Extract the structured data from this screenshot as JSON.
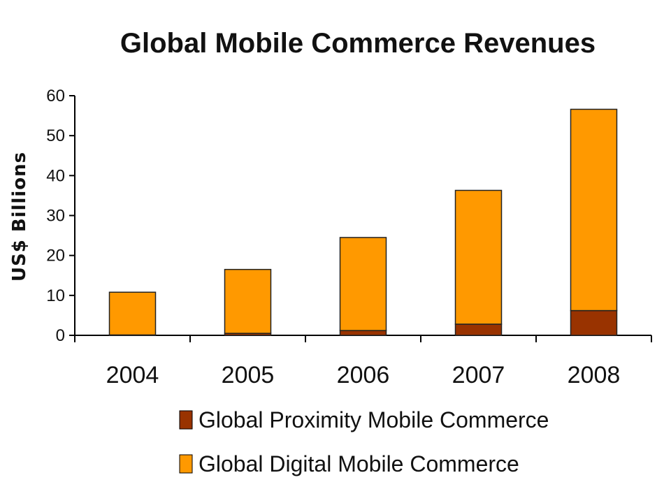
{
  "chart_data": {
    "type": "bar",
    "stacked": true,
    "title": "Global Mobile Commerce Revenues",
    "xlabel": "",
    "ylabel": "US$ Billions",
    "ylim": [
      0,
      60
    ],
    "yticks": [
      "0",
      "10",
      "20",
      "30",
      "40",
      "50",
      "60"
    ],
    "grid": false,
    "legend_position": "bottom",
    "categories": [
      "2004",
      "2005",
      "2006",
      "2007",
      "2008"
    ],
    "series": [
      {
        "name": "Global Proximity Mobile Commerce",
        "color": "#993300",
        "values": [
          0.1,
          0.5,
          1.2,
          2.8,
          6.2
        ]
      },
      {
        "name": "Global Digital Mobile Commerce",
        "color": "#FF9900",
        "values": [
          10.7,
          16.0,
          23.3,
          33.5,
          50.4
        ]
      }
    ]
  }
}
